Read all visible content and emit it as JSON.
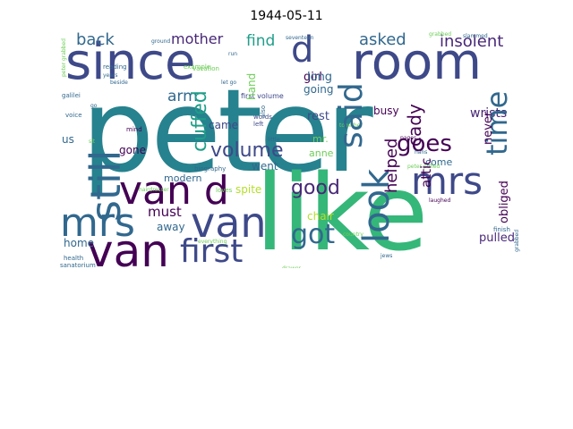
{
  "title": "1944-05-11",
  "colors": {
    "dark_purple": "#440154",
    "purple": "#482878",
    "indigo": "#3e4989",
    "blue": "#31688e",
    "teal": "#26828e",
    "green_teal": "#1f9e89",
    "green": "#35b779",
    "light_green": "#6ece58",
    "yellow": "#b5de2b",
    "bright_yellow": "#fde725"
  },
  "words": {
    "peter": "peter",
    "like": "like",
    "since": "since",
    "room": "room",
    "van_1": "van",
    "van_2": "van",
    "mrs_1": "mrs",
    "mrs_2": "mrs",
    "van_d": "van d",
    "d": "d",
    "first": "first",
    "still": "still",
    "said": "said",
    "look": "look",
    "got": "got",
    "good": "good",
    "time": "time",
    "goes": "goes",
    "volume": "volume",
    "cuffed": "cuffed",
    "back": "back",
    "mother": "mother",
    "find": "find",
    "asked": "asked",
    "insolent": "insolent",
    "arm": "arm",
    "must": "must",
    "away": "away",
    "girl": "girl",
    "helped": "helped",
    "cady": "cady",
    "attic": "attic",
    "pulled": "pulled",
    "obliged": "obliged",
    "wrists": "wrists",
    "long": "long",
    "busy": "busy",
    "going": "going",
    "never": "never",
    "rest": "rest",
    "came": "came",
    "went": "went",
    "gone": "gone",
    "modern": "modern",
    "home": "home",
    "us": "us",
    "chair": "chair",
    "spite": "spite",
    "come": "come",
    "anne": "anne",
    "mr": "mr.",
    "example": "example",
    "hand": "hand",
    "first_volume": "first volume",
    "vacation": "vacation",
    "reading": "reading",
    "biography": "biography",
    "loves": "loves",
    "health": "health",
    "sanatorium": "sanatorium",
    "galilei": "galilei",
    "voice": "voice",
    "mind": "mind",
    "everything": "everything",
    "finish": "finish",
    "left": "left",
    "words": "words",
    "little": "little",
    "country": "country",
    "together": "together",
    "hans": "hans",
    "laughed": "laughed",
    "years": "years",
    "jews": "jews",
    "drawer": "drawer",
    "pages": "pages",
    "also": "also",
    "let_go": "let go",
    "seventeen": "seventeen",
    "slammed": "slammed",
    "grabbed": "grabbed",
    "peter_pulled": "peter pulled",
    "peter_grabbed": "peter grabbed",
    "beside": "beside",
    "hairdresser": "hairdresser",
    "ground": "ground",
    "run": "run",
    "sit": "sit",
    "go": "go"
  }
}
